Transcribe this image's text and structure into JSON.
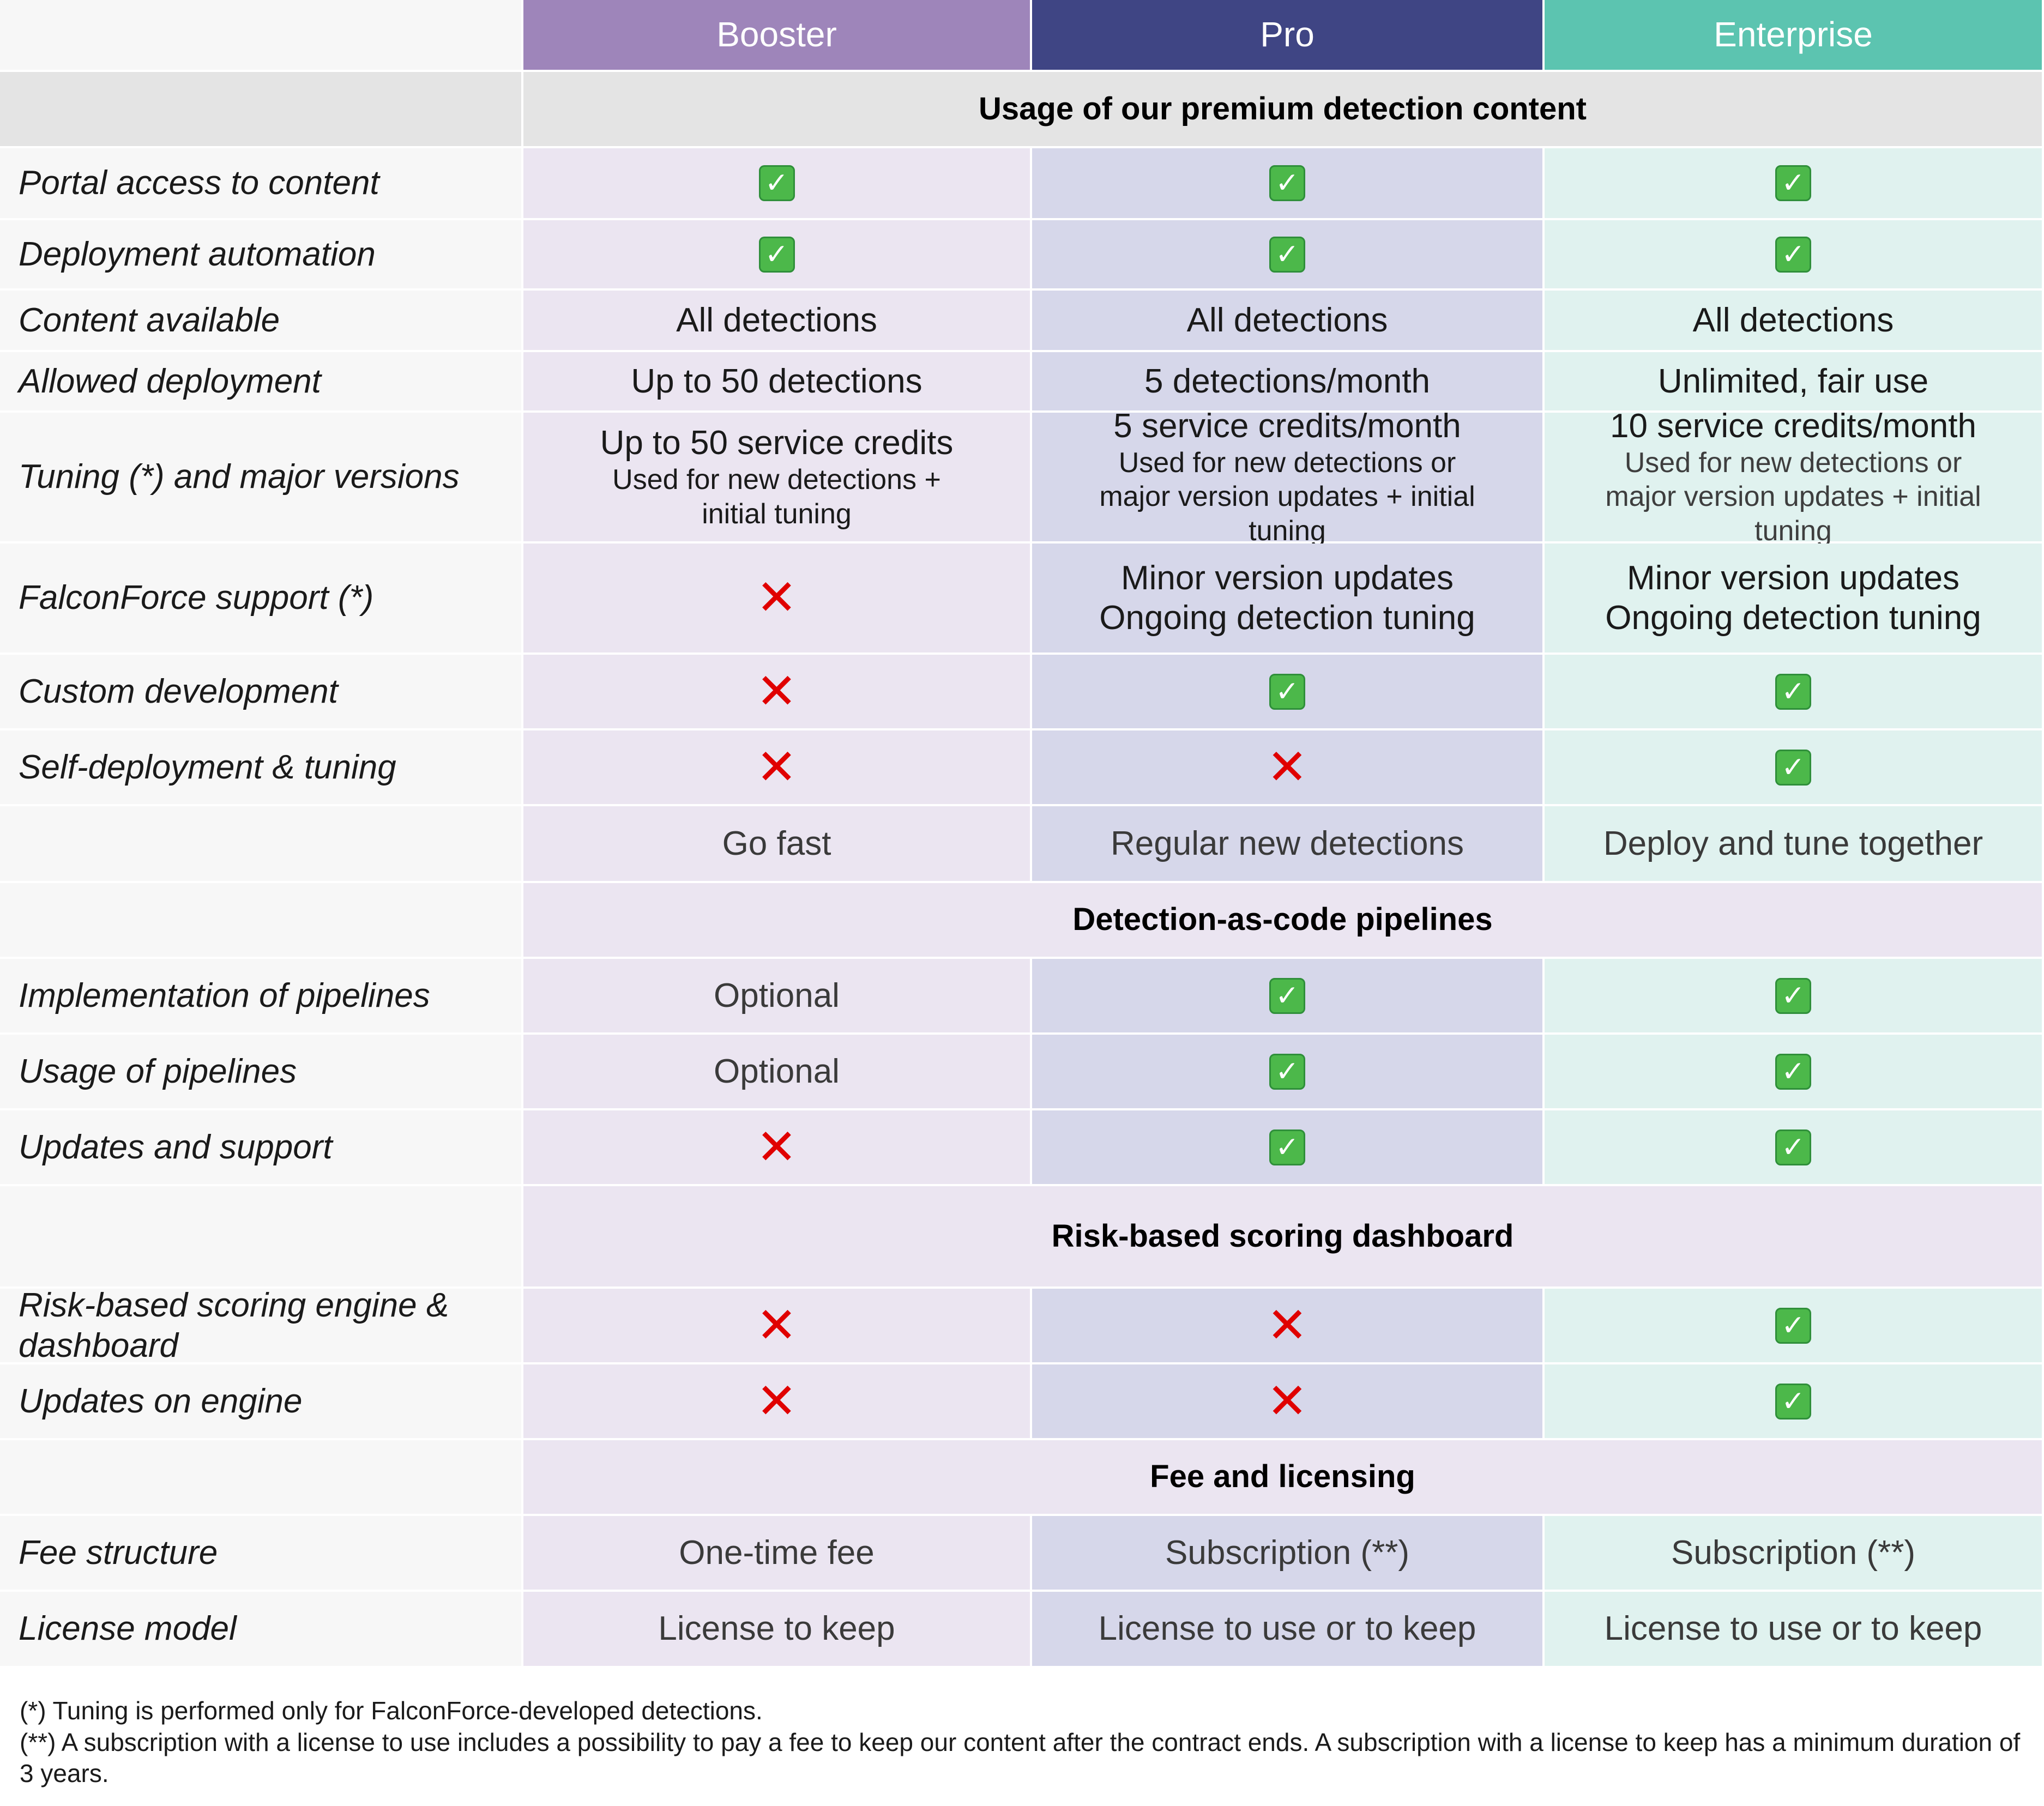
{
  "tiers": [
    "Booster",
    "Pro",
    "Enterprise"
  ],
  "sections": {
    "usage": "Usage of our premium detection content",
    "pipelines": "Detection-as-code pipelines",
    "risk": "Risk-based scoring dashboard",
    "fee": "Fee and licensing"
  },
  "rows": {
    "portal": {
      "label": "Portal access to content"
    },
    "deploy_auto": {
      "label": "Deployment automation"
    },
    "content": {
      "label": "Content available",
      "values": [
        "All detections",
        "All detections",
        "All detections"
      ]
    },
    "allowed": {
      "label": "Allowed deployment",
      "values": [
        "Up to 50 detections",
        "5 detections/month",
        "Unlimited, fair use"
      ]
    },
    "tuning": {
      "label": "Tuning (*) and major versions",
      "values": [
        "Up to 50 service credits",
        "5 service credits/month",
        "10 service credits/month"
      ],
      "subs": [
        "Used for new detections + initial tuning",
        "Used for new detections or major version updates + initial tuning",
        "Used for new detections or major version updates + initial tuning"
      ]
    },
    "support": {
      "label": "FalconForce support (*)",
      "line1": "Minor version updates",
      "line2": "Ongoing detection tuning"
    },
    "custom": {
      "label": "Custom development"
    },
    "self": {
      "label": "Self-deployment & tuning"
    },
    "taglines": {
      "values": [
        "Go fast",
        "Regular new detections",
        "Deploy and tune together"
      ]
    },
    "impl": {
      "label": "Implementation of pipelines",
      "booster": "Optional"
    },
    "usage_pipe": {
      "label": "Usage of pipelines",
      "booster": "Optional"
    },
    "updates_support": {
      "label": "Updates and support"
    },
    "risk_engine": {
      "label": "Risk-based scoring engine & dashboard"
    },
    "engine_updates": {
      "label": "Updates on engine"
    },
    "fee_structure": {
      "label": "Fee structure",
      "values": [
        "One-time fee",
        "Subscription (**)",
        "Subscription (**)"
      ]
    },
    "license": {
      "label": "License model",
      "values": [
        "License to keep",
        "License to use or to keep",
        "License to use or to keep"
      ]
    }
  },
  "icons": {
    "check": "✓",
    "cross": "✕"
  },
  "notes": [
    "(*) Tuning is performed only for FalconForce-developed detections.",
    "(**) A subscription with a license to use includes a possibility to pay a fee to keep our content after the contract ends. A subscription with a license to keep has a minimum duration of 3 years."
  ]
}
